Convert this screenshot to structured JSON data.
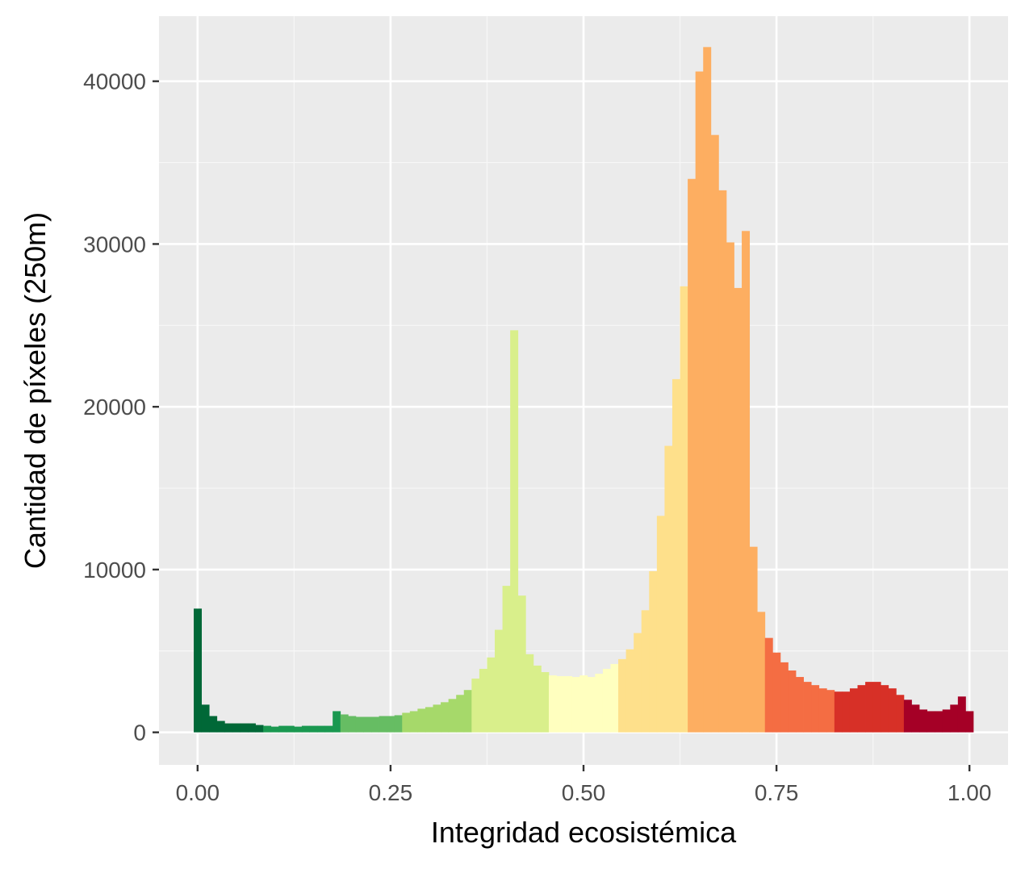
{
  "chart_data": {
    "type": "bar",
    "xlabel": "Integridad ecosistémica",
    "ylabel": "Cantidad de píxeles (250m)",
    "xlim": [
      -0.05,
      1.05
    ],
    "ylim": [
      -2000,
      44000
    ],
    "bin_width": 0.01,
    "x_ticks": [
      0.0,
      0.25,
      0.5,
      0.75,
      1.0
    ],
    "x_tick_labels": [
      "0.00",
      "0.25",
      "0.50",
      "0.75",
      "1.00"
    ],
    "y_ticks": [
      0,
      10000,
      20000,
      30000,
      40000
    ],
    "y_tick_labels": [
      "0",
      "10000",
      "20000",
      "30000",
      "40000"
    ],
    "grid": true,
    "legend": "none",
    "bins_start": [
      0.0,
      0.01,
      0.02,
      0.03,
      0.04,
      0.05,
      0.06,
      0.07,
      0.08,
      0.09,
      0.1,
      0.11,
      0.12,
      0.13,
      0.14,
      0.15,
      0.16,
      0.17,
      0.18,
      0.19,
      0.2,
      0.21,
      0.22,
      0.23,
      0.24,
      0.25,
      0.26,
      0.27,
      0.28,
      0.29,
      0.3,
      0.31,
      0.32,
      0.33,
      0.34,
      0.35,
      0.36,
      0.37,
      0.38,
      0.39,
      0.4,
      0.41,
      0.42,
      0.43,
      0.44,
      0.45,
      0.46,
      0.47,
      0.48,
      0.49,
      0.5,
      0.51,
      0.52,
      0.53,
      0.54,
      0.55,
      0.56,
      0.57,
      0.58,
      0.59,
      0.6,
      0.61,
      0.62,
      0.63,
      0.64,
      0.65,
      0.66,
      0.67,
      0.68,
      0.69,
      0.7,
      0.71,
      0.72,
      0.73,
      0.74,
      0.75,
      0.76,
      0.77,
      0.78,
      0.79,
      0.8,
      0.81,
      0.82,
      0.83,
      0.84,
      0.85,
      0.86,
      0.87,
      0.88,
      0.89,
      0.9,
      0.91,
      0.92,
      0.93,
      0.94,
      0.95,
      0.96,
      0.97,
      0.98,
      0.99,
      1.0
    ],
    "counts": [
      7600,
      1700,
      1000,
      700,
      550,
      550,
      550,
      550,
      450,
      400,
      350,
      400,
      400,
      350,
      400,
      400,
      400,
      400,
      1300,
      1100,
      1000,
      950,
      950,
      950,
      1000,
      1000,
      1050,
      1200,
      1300,
      1450,
      1550,
      1700,
      1850,
      2050,
      2300,
      2600,
      3300,
      3900,
      4600,
      6300,
      9000,
      24700,
      8400,
      4800,
      4100,
      3700,
      3500,
      3450,
      3450,
      3400,
      3500,
      3400,
      3600,
      3900,
      4200,
      4500,
      5100,
      6100,
      7500,
      9900,
      13300,
      17600,
      21700,
      27400,
      34000,
      40600,
      42100,
      36700,
      33300,
      30100,
      27300,
      30800,
      11400,
      7400,
      5800,
      4900,
      4300,
      3800,
      3400,
      3100,
      2900,
      2700,
      2600,
      2500,
      2500,
      2700,
      2900,
      3100,
      3100,
      2900,
      2700,
      2300,
      2000,
      1700,
      1400,
      1300,
      1300,
      1400,
      1700,
      2200,
      1300
    ],
    "bin_colors": [
      "#006837",
      "#006837",
      "#006837",
      "#006837",
      "#006837",
      "#006837",
      "#006837",
      "#006837",
      "#006837",
      "#1a9850",
      "#1a9850",
      "#1a9850",
      "#1a9850",
      "#1a9850",
      "#1a9850",
      "#1a9850",
      "#1a9850",
      "#1a9850",
      "#1a9850",
      "#66bd63",
      "#66bd63",
      "#66bd63",
      "#66bd63",
      "#66bd63",
      "#66bd63",
      "#66bd63",
      "#66bd63",
      "#a6d96a",
      "#a6d96a",
      "#a6d96a",
      "#a6d96a",
      "#a6d96a",
      "#a6d96a",
      "#a6d96a",
      "#a6d96a",
      "#a6d96a",
      "#d9ef8b",
      "#d9ef8b",
      "#d9ef8b",
      "#d9ef8b",
      "#d9ef8b",
      "#d9ef8b",
      "#d9ef8b",
      "#d9ef8b",
      "#d9ef8b",
      "#d9ef8b",
      "#ffffbf",
      "#ffffbf",
      "#ffffbf",
      "#ffffbf",
      "#ffffbf",
      "#ffffbf",
      "#ffffbf",
      "#ffffbf",
      "#ffffbf",
      "#fee08b",
      "#fee08b",
      "#fee08b",
      "#fee08b",
      "#fee08b",
      "#fee08b",
      "#fee08b",
      "#fee08b",
      "#fee08b",
      "#fdae61",
      "#fdae61",
      "#fdae61",
      "#fdae61",
      "#fdae61",
      "#fdae61",
      "#fdae61",
      "#fdae61",
      "#fdae61",
      "#fdae61",
      "#f46d43",
      "#f46d43",
      "#f46d43",
      "#f46d43",
      "#f46d43",
      "#f46d43",
      "#f46d43",
      "#f46d43",
      "#f46d43",
      "#d73027",
      "#d73027",
      "#d73027",
      "#d73027",
      "#d73027",
      "#d73027",
      "#d73027",
      "#d73027",
      "#d73027",
      "#a50026",
      "#a50026",
      "#a50026",
      "#a50026",
      "#a50026",
      "#a50026",
      "#a50026",
      "#a50026",
      "#a50026",
      "#a50026"
    ],
    "colors": {
      "panel_background": "#ebebeb",
      "grid_major": "#ffffff",
      "grid_minor": "#f7f7f7",
      "tick_mark": "#333333",
      "tick_label": "#4d4d4d"
    }
  }
}
